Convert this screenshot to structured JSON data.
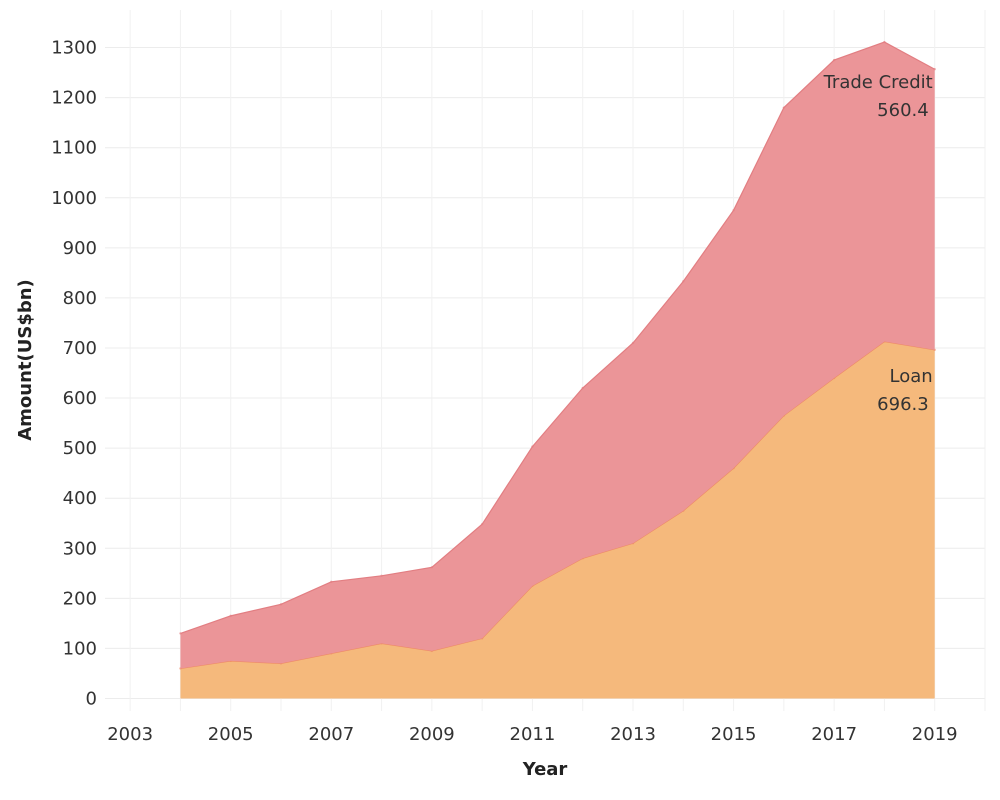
{
  "chart_data": {
    "type": "area",
    "stacked": true,
    "title": "",
    "xlabel": "Year",
    "ylabel": "Amount(US$bn)",
    "x": [
      2004,
      2005,
      2006,
      2007,
      2008,
      2009,
      2010,
      2011,
      2012,
      2013,
      2014,
      2015,
      2016,
      2017,
      2018,
      2019
    ],
    "series": [
      {
        "name": "Loan",
        "color": "#f5b97c",
        "line_color": "#ee8a66",
        "values": [
          60,
          75,
          70,
          90,
          110,
          95,
          120,
          225,
          280,
          310,
          375,
          460,
          565,
          640,
          713,
          696.3
        ]
      },
      {
        "name": "Trade Credit",
        "color": "#eb9598",
        "line_color": "#e27e82",
        "values": [
          70,
          90,
          118,
          143,
          135,
          167,
          228,
          278,
          340,
          400,
          458,
          515,
          615,
          635,
          598,
          560.4
        ]
      }
    ],
    "annotations": [
      {
        "series": "Trade Credit",
        "label": "Trade Credit",
        "value_text": "560.4"
      },
      {
        "series": "Loan",
        "label": "Loan",
        "value_text": "696.3"
      }
    ],
    "xticks": [
      "2003",
      "2005",
      "2007",
      "2009",
      "2011",
      "2013",
      "2015",
      "2017",
      "2019"
    ],
    "yticks": [
      "0",
      "100",
      "200",
      "300",
      "400",
      "500",
      "600",
      "700",
      "800",
      "900",
      "1000",
      "1100",
      "1200",
      "1300"
    ],
    "xlim": [
      2002.5,
      2020
    ],
    "ylim": [
      -25,
      1375
    ],
    "grid": true,
    "legend": "none"
  }
}
